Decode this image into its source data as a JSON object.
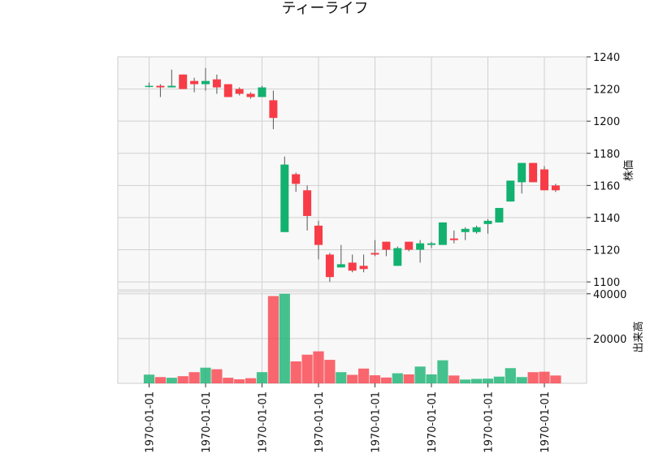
{
  "chart_data": {
    "type": "candlestick",
    "title": "ティーライフ",
    "up_color": "#12b16f",
    "down_color": "#f83c47",
    "price_panel": {
      "ylabel": "株価",
      "ylim": [
        1095,
        1240
      ],
      "yticks": [
        1100,
        1120,
        1140,
        1160,
        1180,
        1200,
        1220,
        1240
      ],
      "grid": true,
      "y_axis_side": "right"
    },
    "volume_panel": {
      "ylabel": "出来高",
      "ylim": [
        0,
        41000
      ],
      "yticks": [
        20000,
        40000
      ],
      "grid": true,
      "y_axis_side": "right"
    },
    "x_tick_labels": [
      "1970-01-01",
      "1970-01-01",
      "1970-01-01",
      "1970-01-01",
      "1970-01-01",
      "1970-01-01",
      "1970-01-01",
      "1970-01-01"
    ],
    "x_tick_positions": [
      0,
      5,
      10,
      15,
      20,
      25,
      30,
      35
    ],
    "candles": [
      {
        "o": 1222,
        "h": 1224,
        "l": 1221,
        "c": 1222,
        "v": 3900
      },
      {
        "o": 1222,
        "h": 1223,
        "l": 1215,
        "c": 1221,
        "v": 2800
      },
      {
        "o": 1221,
        "h": 1232,
        "l": 1221,
        "c": 1222,
        "v": 2500
      },
      {
        "o": 1229,
        "h": 1229,
        "l": 1220,
        "c": 1220,
        "v": 3200
      },
      {
        "o": 1225,
        "h": 1227,
        "l": 1218,
        "c": 1223,
        "v": 5000
      },
      {
        "o": 1223,
        "h": 1233,
        "l": 1219,
        "c": 1225,
        "v": 7000
      },
      {
        "o": 1226,
        "h": 1229,
        "l": 1217,
        "c": 1221,
        "v": 6300
      },
      {
        "o": 1223,
        "h": 1223,
        "l": 1215,
        "c": 1215,
        "v": 2500
      },
      {
        "o": 1220,
        "h": 1221,
        "l": 1216,
        "c": 1217,
        "v": 1800
      },
      {
        "o": 1217,
        "h": 1218,
        "l": 1214,
        "c": 1215,
        "v": 2300
      },
      {
        "o": 1215,
        "h": 1222,
        "l": 1215,
        "c": 1221,
        "v": 5000
      },
      {
        "o": 1213,
        "h": 1219,
        "l": 1195,
        "c": 1202,
        "v": 39000
      },
      {
        "o": 1131,
        "h": 1178,
        "l": 1131,
        "c": 1173,
        "v": 40000
      },
      {
        "o": 1167,
        "h": 1168,
        "l": 1156,
        "c": 1161,
        "v": 9800
      },
      {
        "o": 1157,
        "h": 1160,
        "l": 1132,
        "c": 1141,
        "v": 12800
      },
      {
        "o": 1135,
        "h": 1138,
        "l": 1114,
        "c": 1123,
        "v": 14300
      },
      {
        "o": 1117,
        "h": 1118,
        "l": 1100,
        "c": 1103,
        "v": 10500
      },
      {
        "o": 1109,
        "h": 1123,
        "l": 1109,
        "c": 1111,
        "v": 5000
      },
      {
        "o": 1112,
        "h": 1117,
        "l": 1106,
        "c": 1107,
        "v": 3800
      },
      {
        "o": 1110,
        "h": 1117,
        "l": 1106,
        "c": 1108,
        "v": 6600
      },
      {
        "o": 1118,
        "h": 1126,
        "l": 1116,
        "c": 1117,
        "v": 3600
      },
      {
        "o": 1125,
        "h": 1125,
        "l": 1116,
        "c": 1120,
        "v": 2600
      },
      {
        "o": 1110,
        "h": 1122,
        "l": 1110,
        "c": 1121,
        "v": 4500
      },
      {
        "o": 1125,
        "h": 1125,
        "l": 1119,
        "c": 1120,
        "v": 4000
      },
      {
        "o": 1120,
        "h": 1126,
        "l": 1112,
        "c": 1124,
        "v": 7500
      },
      {
        "o": 1123,
        "h": 1125,
        "l": 1121,
        "c": 1124,
        "v": 4000
      },
      {
        "o": 1123,
        "h": 1137,
        "l": 1123,
        "c": 1137,
        "v": 10300
      },
      {
        "o": 1127,
        "h": 1132,
        "l": 1124,
        "c": 1126,
        "v": 3500
      },
      {
        "o": 1131,
        "h": 1134,
        "l": 1126,
        "c": 1133,
        "v": 1700
      },
      {
        "o": 1131,
        "h": 1135,
        "l": 1130,
        "c": 1134,
        "v": 2000
      },
      {
        "o": 1136,
        "h": 1139,
        "l": 1130,
        "c": 1138,
        "v": 2100
      },
      {
        "o": 1137,
        "h": 1146,
        "l": 1137,
        "c": 1146,
        "v": 3000
      },
      {
        "o": 1150,
        "h": 1163,
        "l": 1150,
        "c": 1163,
        "v": 6800
      },
      {
        "o": 1162,
        "h": 1174,
        "l": 1155,
        "c": 1174,
        "v": 2800
      },
      {
        "o": 1174,
        "h": 1174,
        "l": 1162,
        "c": 1162,
        "v": 5000
      },
      {
        "o": 1170,
        "h": 1172,
        "l": 1157,
        "c": 1157,
        "v": 5200
      },
      {
        "o": 1160,
        "h": 1161,
        "l": 1156,
        "c": 1157,
        "v": 3500
      }
    ]
  }
}
